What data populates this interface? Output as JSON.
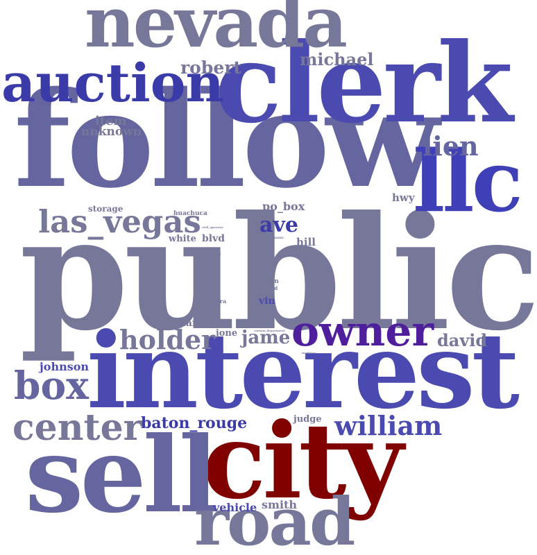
{
  "colors": {
    "slate": "#777799",
    "slate_blue": "#6565a0",
    "blue": "#4a4ab0",
    "royal": "#3f3fb8",
    "indigo": "#3a3aa8",
    "purple": "#4e1e9c",
    "dark_red": "#800000"
  },
  "words": [
    {
      "id": "public",
      "text": "public",
      "color": "slate"
    },
    {
      "id": "follow",
      "text": "follow",
      "color": "slate_blue"
    },
    {
      "id": "interest",
      "text": "interest",
      "color": "blue"
    },
    {
      "id": "clerk",
      "text": "clerk",
      "color": "blue"
    },
    {
      "id": "city",
      "text": "city",
      "color": "dark_red"
    },
    {
      "id": "sell",
      "text": "sell",
      "color": "slate_blue"
    },
    {
      "id": "nevada",
      "text": "nevada",
      "color": "slate"
    },
    {
      "id": "road",
      "text": "road",
      "color": "slate"
    },
    {
      "id": "llc",
      "text": "llc",
      "color": "royal"
    },
    {
      "id": "auction",
      "text": "auction",
      "color": "indigo"
    },
    {
      "id": "owner",
      "text": "owner",
      "color": "purple"
    },
    {
      "id": "box",
      "text": "box",
      "color": "slate_blue"
    },
    {
      "id": "center",
      "text": "center",
      "color": "slate"
    },
    {
      "id": "las_vegas",
      "text": "las_vegas",
      "color": "slate"
    },
    {
      "id": "holder",
      "text": "holder",
      "color": "slate"
    },
    {
      "id": "william",
      "text": "william",
      "color": "blue"
    },
    {
      "id": "lien",
      "text": "lien",
      "color": "slate_blue"
    },
    {
      "id": "ave",
      "text": "ave",
      "color": "indigo"
    },
    {
      "id": "robert",
      "text": "robert",
      "color": "slate"
    },
    {
      "id": "michael",
      "text": "michael",
      "color": "slate"
    },
    {
      "id": "jame",
      "text": "jame",
      "color": "slate"
    },
    {
      "id": "david",
      "text": "david",
      "color": "slate"
    },
    {
      "id": "baton_rouge",
      "text": "baton_rouge",
      "color": "indigo"
    },
    {
      "id": "item",
      "text": "item",
      "color": "slate"
    },
    {
      "id": "unknown",
      "text": "unknown",
      "color": "slate"
    },
    {
      "id": "johnson",
      "text": "johnson",
      "color": "blue"
    },
    {
      "id": "vehicle",
      "text": "vehicle",
      "color": "blue"
    },
    {
      "id": "smith",
      "text": "smith",
      "color": "slate"
    },
    {
      "id": "po_box",
      "text": "po_box",
      "color": "slate"
    },
    {
      "id": "hwy",
      "text": "hwy",
      "color": "slate"
    },
    {
      "id": "blvd",
      "text": "blvd",
      "color": "slate"
    },
    {
      "id": "hill",
      "text": "hill",
      "color": "slate"
    },
    {
      "id": "mary",
      "text": "mary",
      "color": "slate"
    },
    {
      "id": "jone",
      "text": "jone",
      "color": "slate"
    },
    {
      "id": "judge",
      "text": "judge",
      "color": "slate"
    },
    {
      "id": "vin",
      "text": "vin",
      "color": "blue"
    },
    {
      "id": "white",
      "text": "white",
      "color": "slate"
    },
    {
      "id": "storage",
      "text": "storage",
      "color": "slate"
    },
    {
      "id": "huachuca",
      "text": "huachuca",
      "color": "slate"
    },
    {
      "id": "gas",
      "text": "gas",
      "color": "slate"
    },
    {
      "id": "por",
      "text": "por",
      "color": "slate"
    },
    {
      "id": "allen",
      "text": "allen",
      "color": "slate"
    },
    {
      "id": "ford",
      "text": "ford",
      "color": "slate"
    },
    {
      "id": "para",
      "text": "para",
      "color": "slate"
    },
    {
      "id": "belle_chasse",
      "text": "belle_chasse",
      "color": "slate"
    },
    {
      "id": "civil_operator",
      "text": "civil_operator",
      "color": "slate"
    },
    {
      "id": "control",
      "text": "control",
      "color": "slate"
    },
    {
      "id": "riverbaree",
      "text": "riverbaree",
      "color": "slate"
    },
    {
      "id": "martinez",
      "text": "martinez",
      "color": "slate"
    },
    {
      "id": "various_department",
      "text": "various_department",
      "color": "slate"
    }
  ]
}
